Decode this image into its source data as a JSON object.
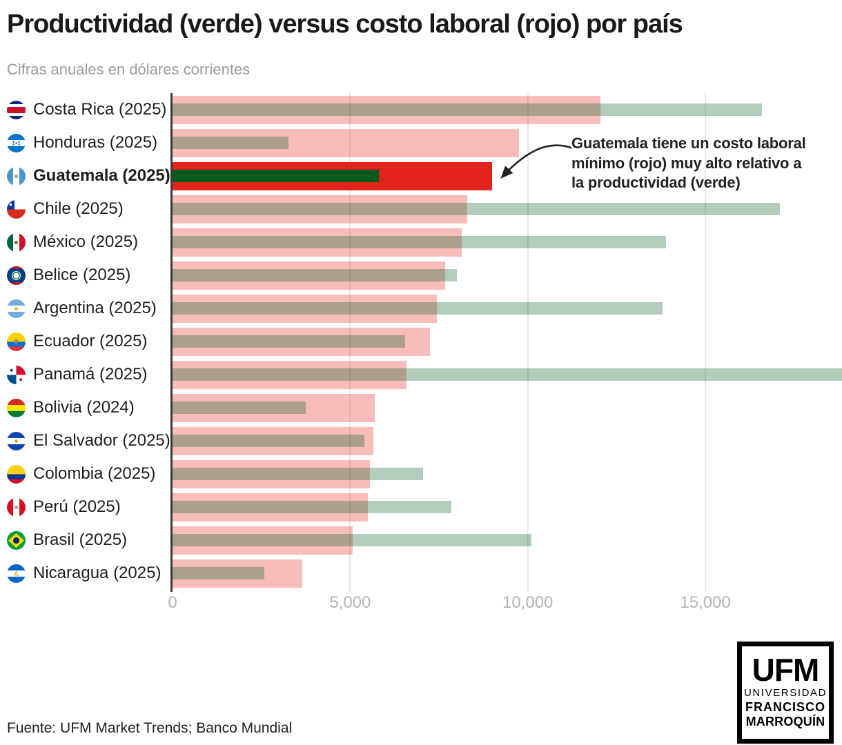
{
  "title": "Productividad (verde) versus costo laboral (rojo) por país",
  "subtitle": "Cifras anuales en dólares corrientes",
  "annotation": {
    "text": "Guatemala tiene un costo laboral mínimo (rojo) muy alto relativo a la productividad (verde)"
  },
  "source": "Fuente: UFM Market Trends; Banco Mundial",
  "logo": {
    "line1": "UFM",
    "line2": "UNIVERSIDAD",
    "line3": "FRANCISCO",
    "line4": "MARROQUÍN"
  },
  "colors": {
    "costo_laboral_red": "#e2231c",
    "productividad_green": "#00591d",
    "bar_alpha_normal": 0.3,
    "gridline": "#e7e7e7",
    "axis_spine": "#3a3a3a",
    "tick_label": "#b3b3b3",
    "annotation_ink": "#222222"
  },
  "chart_data": {
    "type": "bar",
    "orientation": "horizontal",
    "title": "Productividad (verde) versus costo laboral (rojo) por país",
    "subtitle": "Cifras anuales en dólares corrientes",
    "xlabel": "",
    "ylabel": "",
    "xlim": [
      0,
      18846
    ],
    "xticks": [
      0,
      5000,
      10000,
      15000
    ],
    "xtick_labels": [
      "0",
      "5,000",
      "10,000",
      "15,000"
    ],
    "grid": "vertical",
    "series_names": [
      "Costo laboral (rojo)",
      "Productividad (verde)"
    ],
    "highlighted_category": "Guatemala (2025)",
    "rows": [
      {
        "country": "Costa Rica (2025)",
        "slug": "costa-rica",
        "costo_laboral": 12050,
        "productividad": 16600,
        "highlight": false
      },
      {
        "country": "Honduras (2025)",
        "slug": "honduras",
        "costo_laboral": 9750,
        "productividad": 3270,
        "highlight": false
      },
      {
        "country": "Guatemala (2025)",
        "slug": "guatemala",
        "costo_laboral": 9000,
        "productividad": 5800,
        "highlight": true
      },
      {
        "country": "Chile (2025)",
        "slug": "chile",
        "costo_laboral": 8300,
        "productividad": 17100,
        "highlight": false
      },
      {
        "country": "México (2025)",
        "slug": "mexico",
        "costo_laboral": 8150,
        "productividad": 13900,
        "highlight": false
      },
      {
        "country": "Belice (2025)",
        "slug": "belice",
        "costo_laboral": 7670,
        "productividad": 8000,
        "highlight": false
      },
      {
        "country": "Argentina (2025)",
        "slug": "argentina",
        "costo_laboral": 7440,
        "productividad": 13800,
        "highlight": false
      },
      {
        "country": "Ecuador (2025)",
        "slug": "ecuador",
        "costo_laboral": 7250,
        "productividad": 6550,
        "highlight": false
      },
      {
        "country": "Panamá (2025)",
        "slug": "panama",
        "costo_laboral": 6580,
        "productividad": 18850,
        "highlight": false
      },
      {
        "country": "Bolivia (2024)",
        "slug": "bolivia",
        "costo_laboral": 5700,
        "productividad": 3750,
        "highlight": false
      },
      {
        "country": "El Salvador (2025)",
        "slug": "el-salvador",
        "costo_laboral": 5650,
        "productividad": 5400,
        "highlight": false
      },
      {
        "country": "Colombia (2025)",
        "slug": "colombia",
        "costo_laboral": 5550,
        "productividad": 7050,
        "highlight": false
      },
      {
        "country": "Perú (2025)",
        "slug": "peru",
        "costo_laboral": 5500,
        "productividad": 7850,
        "highlight": false
      },
      {
        "country": "Brasil (2025)",
        "slug": "brasil",
        "costo_laboral": 5080,
        "productividad": 10100,
        "highlight": false
      },
      {
        "country": "Nicaragua (2025)",
        "slug": "nicaragua",
        "costo_laboral": 3650,
        "productividad": 2580,
        "highlight": false
      }
    ]
  }
}
